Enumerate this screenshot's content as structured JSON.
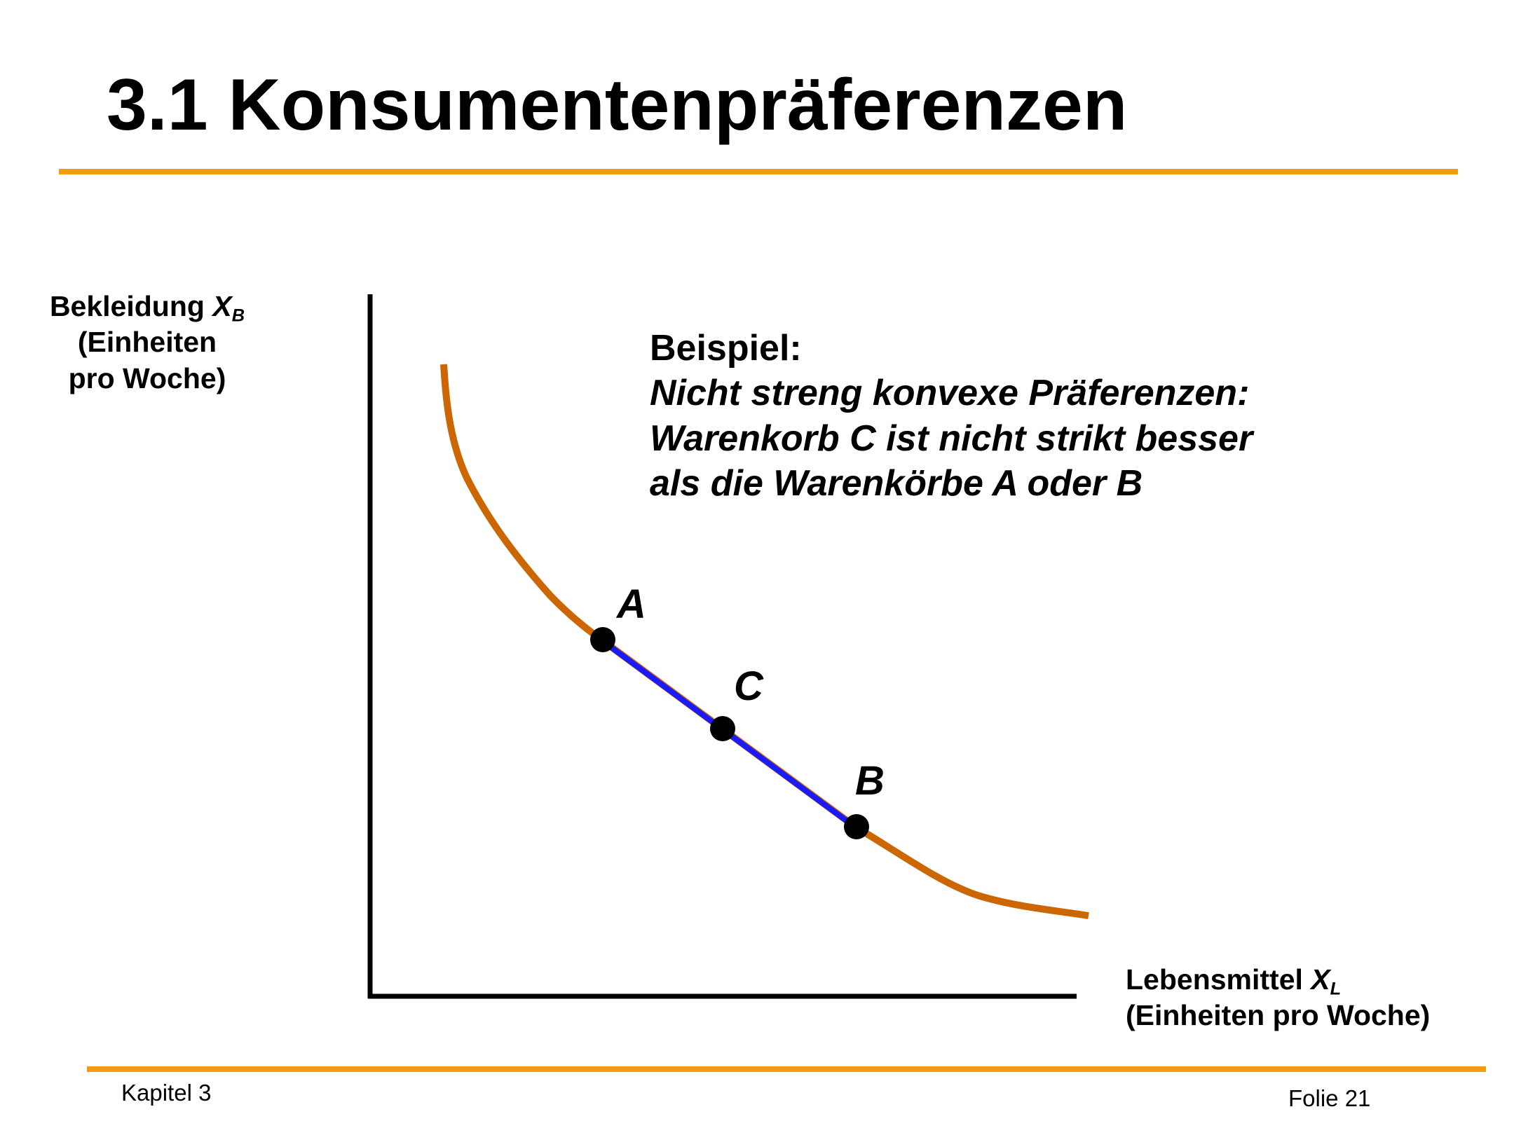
{
  "slide": {
    "title": "3.1 Konsumentenpräferenzen",
    "accent_color": "#f39c12"
  },
  "diagram": {
    "y_axis": {
      "line1_text": "Bekleidung ",
      "variable": "X",
      "subscript": "B",
      "line2": "(Einheiten",
      "line3": "pro Woche)"
    },
    "x_axis": {
      "line1_text": "Lebensmittel ",
      "variable": "X",
      "subscript": "L",
      "line2": "(Einheiten pro Woche)"
    },
    "callout": {
      "heading": "Beispiel:",
      "lines": [
        "Nicht streng konvexe Präferenzen:",
        "Warenkorb C ist nicht strikt besser",
        "als die Warenkörbe A oder B"
      ]
    },
    "points": [
      {
        "label": "A"
      },
      {
        "label": "C"
      },
      {
        "label": "B"
      }
    ],
    "colors": {
      "indifference_curve": "#cc6600",
      "segment": "#1a1aff",
      "points": "#000000",
      "axes": "#000000"
    }
  },
  "footer": {
    "left": "Kapitel 3",
    "right": "Folie 21"
  }
}
